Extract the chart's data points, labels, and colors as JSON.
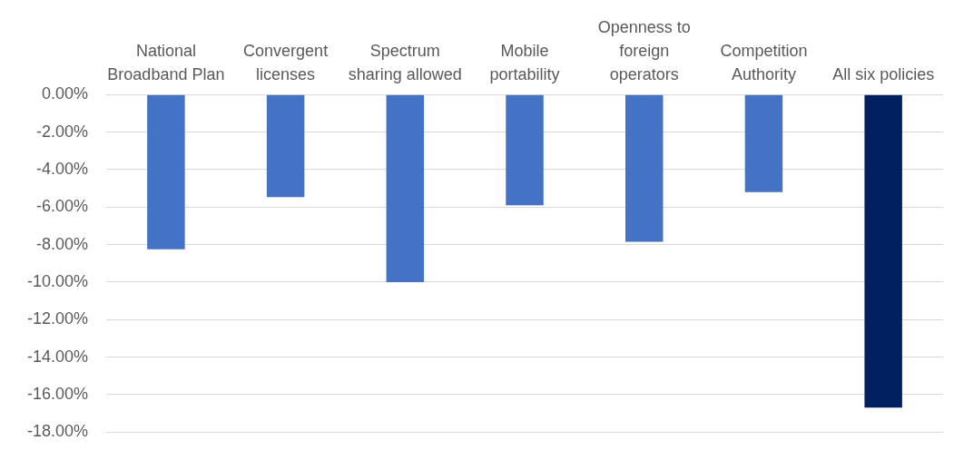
{
  "chart_data": {
    "type": "bar",
    "categories": [
      "National Broadband Plan",
      "Convergent licenses",
      "Spectrum sharing allowed",
      "Mobile portability",
      "Openness to foreign operators",
      "Competition Authority",
      "All six policies"
    ],
    "values": [
      -8.25,
      -5.47,
      -10.0,
      -5.9,
      -7.85,
      -5.2,
      -16.7
    ],
    "colors": [
      "#4472c4",
      "#4472c4",
      "#4472c4",
      "#4472c4",
      "#4472c4",
      "#4472c4",
      "#002060"
    ],
    "ylim": [
      -18,
      0
    ],
    "yticks": [
      {
        "value": -18,
        "label": "-18.00%"
      },
      {
        "value": -16,
        "label": "-16.00%"
      },
      {
        "value": -14,
        "label": "-14.00%"
      },
      {
        "value": -12,
        "label": "-12.00%"
      },
      {
        "value": -10,
        "label": "-10.00%"
      },
      {
        "value": -8,
        "label": "-8.00%"
      },
      {
        "value": -6,
        "label": "-6.00%"
      },
      {
        "value": -4,
        "label": "-4.00%"
      },
      {
        "value": -2,
        "label": "-2.00%"
      },
      {
        "value": 0,
        "label": "0.00%"
      }
    ],
    "grid": "y"
  }
}
